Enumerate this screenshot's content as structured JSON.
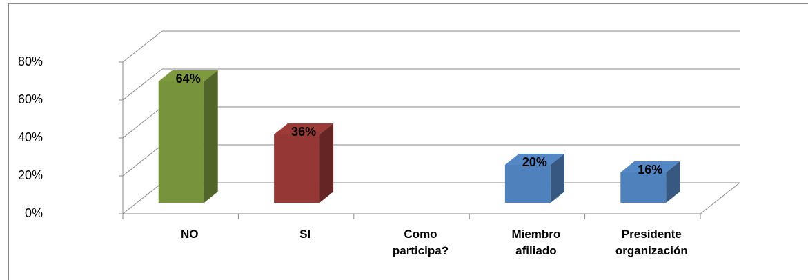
{
  "chart_data": {
    "type": "bar3d",
    "categories": [
      "NO",
      "SI",
      "Como participa?",
      "Miembro afiliado",
      "Presidente organización"
    ],
    "values": [
      64,
      36,
      null,
      20,
      16
    ],
    "value_labels": [
      "64%",
      "36%",
      null,
      "20%",
      "16%"
    ],
    "colors": [
      "#77933c",
      "#953735",
      null,
      "#4f81bd",
      "#4f81bd"
    ],
    "ylim": [
      0,
      80
    ],
    "yticks": [
      {
        "value": 0,
        "label": "0%"
      },
      {
        "value": 20,
        "label": "20%"
      },
      {
        "value": 40,
        "label": "40%"
      },
      {
        "value": 60,
        "label": "60%"
      },
      {
        "value": 80,
        "label": "80%"
      }
    ],
    "grid": true
  }
}
